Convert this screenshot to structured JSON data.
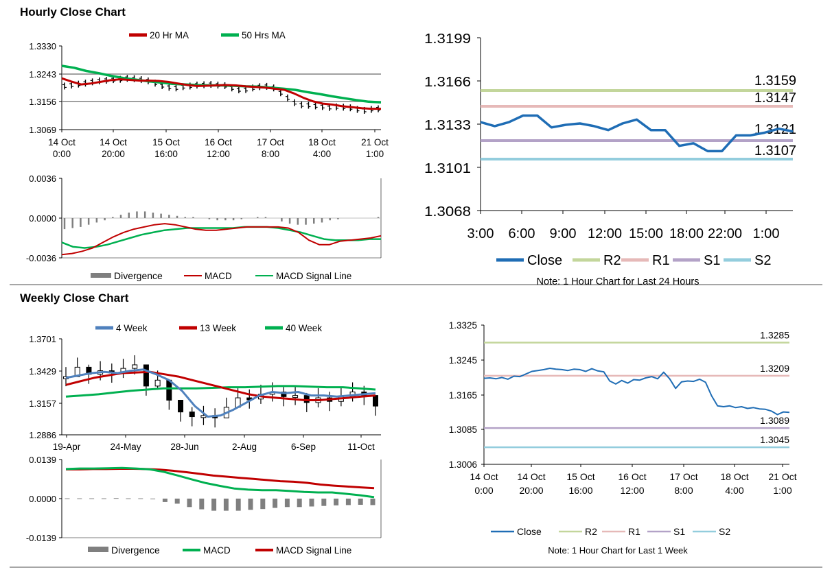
{
  "sections": {
    "hourly_title": "Hourly Close Chart",
    "weekly_title": "Weekly Close Chart"
  },
  "colors": {
    "red": "#c00000",
    "green": "#00b050",
    "blue": "#1f6db5",
    "steel": "#4f81bd",
    "r2": "#c3d69b",
    "r1": "#e6b9b8",
    "s1": "#b3a2c7",
    "s2": "#93cddd",
    "grid": "#808080",
    "divergence": "#7f7f7f"
  },
  "chart_data": [
    {
      "id": "hourly_price",
      "type": "line",
      "x_tick_labels": [
        [
          "14 Oct",
          "0:00"
        ],
        [
          "14 Oct",
          "20:00"
        ],
        [
          "15 Oct",
          "16:00"
        ],
        [
          "16 Oct",
          "12:00"
        ],
        [
          "17 Oct",
          "8:00"
        ],
        [
          "18 Oct",
          "4:00"
        ],
        [
          "21 Oct",
          "1:00"
        ]
      ],
      "y_ticks": [
        "1.3330",
        "1.3243",
        "1.3156",
        "1.3069"
      ],
      "ylim": [
        1.3069,
        1.333
      ],
      "legend": [
        {
          "name": "20 Hr MA",
          "color": "#c00000"
        },
        {
          "name": "50 Hrs MA",
          "color": "#00b050"
        }
      ],
      "series": [
        {
          "name": "Price (OHLC bars)",
          "values": [
            1.3205,
            1.3208,
            1.3211,
            1.3214,
            1.3218,
            1.3221,
            1.3223,
            1.3225,
            1.3226,
            1.3229,
            1.3228,
            1.3225,
            1.3221,
            1.3214,
            1.3206,
            1.3201,
            1.3199,
            1.3203,
            1.3205,
            1.3208,
            1.3209,
            1.321,
            1.3208,
            1.3206,
            1.3199,
            1.3193,
            1.3194,
            1.3199,
            1.3203,
            1.3204,
            1.3199,
            1.3184,
            1.3168,
            1.3153,
            1.3146,
            1.3145,
            1.3143,
            1.3141,
            1.3138,
            1.314,
            1.3139,
            1.3137,
            1.3132,
            1.3129,
            1.3132,
            1.3134
          ]
        },
        {
          "name": "20 Hr MA",
          "values": [
            1.3229,
            1.3219,
            1.321,
            1.3213,
            1.3218,
            1.3223,
            1.3226,
            1.3224,
            1.3222,
            1.3222,
            1.3221,
            1.3218,
            1.3213,
            1.3208,
            1.3205,
            1.3206,
            1.3207,
            1.3208,
            1.3207,
            1.3204,
            1.3202,
            1.32,
            1.3197,
            1.3193,
            1.3182,
            1.3168,
            1.3157,
            1.315,
            1.3147,
            1.3142,
            1.3139,
            1.3136,
            1.3134,
            1.3134
          ]
        },
        {
          "name": "50 Hrs MA",
          "values": [
            1.3268,
            1.3262,
            1.3252,
            1.3245,
            1.3237,
            1.323,
            1.3225,
            1.322,
            1.3216,
            1.3212,
            1.321,
            1.3208,
            1.3207,
            1.3207,
            1.3206,
            1.3204,
            1.3203,
            1.32,
            1.3197,
            1.3193,
            1.3186,
            1.318,
            1.3173,
            1.3167,
            1.3161,
            1.3156,
            1.3154
          ]
        }
      ]
    },
    {
      "id": "hourly_macd",
      "type": "line",
      "y_ticks": [
        "0.0036",
        "0.0000",
        "-0.0036"
      ],
      "ylim": [
        -0.0036,
        0.0036
      ],
      "legend": [
        {
          "name": "Divergence",
          "color": "#7f7f7f"
        },
        {
          "name": "MACD",
          "color": "#c00000"
        },
        {
          "name": "MACD Signal Line",
          "color": "#00b050"
        }
      ],
      "series": [
        {
          "name": "MACD",
          "values": [
            -0.0033,
            -0.0032,
            -0.003,
            -0.0027,
            -0.0022,
            -0.0017,
            -0.0013,
            -0.001,
            -0.0008,
            -0.0006,
            -0.0005,
            -0.0006,
            -0.0008,
            -0.001,
            -0.0011,
            -0.0011,
            -0.001,
            -0.0009,
            -0.0008,
            -0.0008,
            -0.0008,
            -0.0008,
            -0.0009,
            -0.0013,
            -0.002,
            -0.0024,
            -0.0024,
            -0.0021,
            -0.002,
            -0.0019,
            -0.0018,
            -0.0016
          ]
        },
        {
          "name": "MACD Signal Line",
          "values": [
            -0.0022,
            -0.0026,
            -0.0027,
            -0.0026,
            -0.0024,
            -0.0021,
            -0.0018,
            -0.0015,
            -0.0013,
            -0.0011,
            -0.001,
            -0.0009,
            -0.0009,
            -0.0009,
            -0.0009,
            -0.0009,
            -0.0008,
            -0.0008,
            -0.0008,
            -0.0009,
            -0.0011,
            -0.0013,
            -0.0016,
            -0.0019,
            -0.002,
            -0.002,
            -0.002,
            -0.0019,
            -0.0019
          ]
        },
        {
          "name": "Divergence",
          "values": [
            -0.001,
            -0.0009,
            -0.0008,
            -0.0006,
            -0.0004,
            -0.0002,
            0.0001,
            0.0003,
            0.0005,
            0.0006,
            0.0006,
            0.0005,
            0.0004,
            0.0003,
            0.0002,
            0.0001,
            0.0001,
            0.0,
            -0.0001,
            -0.0002,
            -0.0002,
            -0.0002,
            -0.0001,
            0.0,
            0.0001,
            0.0001,
            0.0,
            -0.0003,
            -0.0005,
            -0.0006,
            -0.0006,
            -0.0005,
            -0.0004,
            -0.0002,
            -0.0001,
            0.0,
            0.0,
            0.0,
            0.0,
            0.0001
          ]
        }
      ]
    },
    {
      "id": "hourly_close_24h",
      "type": "line",
      "x_tick_labels": [
        "3:00",
        "6:00",
        "9:00",
        "12:00",
        "15:00",
        "18:00",
        "22:00",
        "1:00"
      ],
      "y_ticks": [
        "1.3199",
        "1.3166",
        "1.3133",
        "1.3101",
        "1.3068"
      ],
      "ylim": [
        1.3068,
        1.3199
      ],
      "series": [
        {
          "name": "Close",
          "values": [
            1.3135,
            1.3132,
            1.3135,
            1.314,
            1.314,
            1.3131,
            1.3133,
            1.3134,
            1.3132,
            1.3129,
            1.3134,
            1.3137,
            1.3129,
            1.3129,
            1.3117,
            1.3119,
            1.3113,
            1.3113,
            1.3125,
            1.3125,
            1.3127,
            1.313,
            1.3128
          ]
        }
      ],
      "levels": [
        {
          "name": "R2",
          "value": 1.3159,
          "label": "1.3159"
        },
        {
          "name": "R1",
          "value": 1.3147,
          "label": "1.3147"
        },
        {
          "name": "S1",
          "value": 1.3121,
          "label": "1.3121"
        },
        {
          "name": "S2",
          "value": 1.3107,
          "label": "1.3107"
        }
      ],
      "legend": [
        "Close",
        "R2",
        "R1",
        "S1",
        "S2"
      ],
      "note": "Note: 1 Hour Chart for Last 24 Hours"
    },
    {
      "id": "weekly_price",
      "type": "line",
      "x_tick_labels": [
        "19-Apr",
        "24-May",
        "28-Jun",
        "2-Aug",
        "6-Sep",
        "11-Oct"
      ],
      "y_ticks": [
        "1.3701",
        "1.3429",
        "1.3157",
        "1.2886"
      ],
      "ylim": [
        1.2886,
        1.3701
      ],
      "legend": [
        {
          "name": "4 Week",
          "color": "#4f81bd"
        },
        {
          "name": "13 Week",
          "color": "#c00000"
        },
        {
          "name": "40 Week",
          "color": "#00b050"
        }
      ],
      "series": [
        {
          "name": "Weekly close",
          "values": [
            1.338,
            1.346,
            1.34,
            1.343,
            1.341,
            1.345,
            1.348,
            1.33,
            1.335,
            1.318,
            1.308,
            1.304,
            1.305,
            1.303,
            1.312,
            1.32,
            1.319,
            1.323,
            1.325,
            1.321,
            1.322,
            1.316,
            1.32,
            1.317,
            1.321,
            1.325,
            1.322,
            1.313
          ]
        },
        {
          "name": "4 Week",
          "values": [
            1.337,
            1.339,
            1.341,
            1.342,
            1.341,
            1.343,
            1.344,
            1.34,
            1.335,
            1.326,
            1.313,
            1.304,
            1.305,
            1.31,
            1.316,
            1.322,
            1.325,
            1.324,
            1.325,
            1.322,
            1.322,
            1.321,
            1.322,
            1.323,
            1.324
          ]
        },
        {
          "name": "13 Week",
          "values": [
            1.331,
            1.334,
            1.337,
            1.339,
            1.341,
            1.3415,
            1.342,
            1.34,
            1.338,
            1.335,
            1.332,
            1.329,
            1.326,
            1.323,
            1.321,
            1.32,
            1.319,
            1.318,
            1.318,
            1.319,
            1.32,
            1.321,
            1.322
          ]
        },
        {
          "name": "40 Week",
          "values": [
            1.321,
            1.322,
            1.323,
            1.3245,
            1.326,
            1.327,
            1.328,
            1.328,
            1.328,
            1.3285,
            1.329,
            1.329,
            1.3295,
            1.33,
            1.33,
            1.3295,
            1.329,
            1.329,
            1.328,
            1.327
          ]
        }
      ]
    },
    {
      "id": "weekly_macd",
      "type": "line",
      "y_ticks": [
        "0.0139",
        "0.0000",
        "-0.0139"
      ],
      "ylim": [
        -0.0139,
        0.0139
      ],
      "legend": [
        {
          "name": "Divergence",
          "color": "#7f7f7f"
        },
        {
          "name": "MACD",
          "color": "#00b050"
        },
        {
          "name": "MACD Signal Line",
          "color": "#c00000"
        }
      ],
      "series": [
        {
          "name": "MACD",
          "values": [
            0.0105,
            0.0107,
            0.0107,
            0.0108,
            0.0109,
            0.0107,
            0.0104,
            0.0095,
            0.0082,
            0.0068,
            0.0055,
            0.0045,
            0.0036,
            0.0032,
            0.003,
            0.003,
            0.0027,
            0.0024,
            0.0022,
            0.0022,
            0.0017,
            0.0012,
            0.0005
          ]
        },
        {
          "name": "MACD Signal Line",
          "values": [
            0.0104,
            0.0104,
            0.0105,
            0.0105,
            0.0106,
            0.0106,
            0.0105,
            0.0103,
            0.0099,
            0.0094,
            0.0088,
            0.0082,
            0.0078,
            0.0074,
            0.007,
            0.0066,
            0.0062,
            0.006,
            0.0056,
            0.005,
            0.0046,
            0.0043,
            0.004,
            0.0037
          ]
        },
        {
          "name": "Divergence",
          "values": [
            0.0001,
            0.0001,
            0.0001,
            0.0001,
            0.0002,
            0.0001,
            0.0001,
            -0.0002,
            -0.0012,
            -0.0018,
            -0.003,
            -0.0038,
            -0.0043,
            -0.0043,
            -0.0043,
            -0.004,
            -0.0037,
            -0.0033,
            -0.003,
            -0.003,
            -0.0028,
            -0.0026,
            -0.0024,
            -0.0023,
            -0.0022,
            -0.0023
          ]
        }
      ]
    },
    {
      "id": "weekly_close_1w",
      "type": "line",
      "x_tick_labels": [
        [
          "14 Oct",
          "0:00"
        ],
        [
          "14 Oct",
          "20:00"
        ],
        [
          "15 Oct",
          "16:00"
        ],
        [
          "16 Oct",
          "12:00"
        ],
        [
          "17 Oct",
          "8:00"
        ],
        [
          "18 Oct",
          "4:00"
        ],
        [
          "21 Oct",
          "1:00"
        ]
      ],
      "y_ticks": [
        "1.3325",
        "1.3245",
        "1.3165",
        "1.3085",
        "1.3006"
      ],
      "ylim": [
        1.3006,
        1.3325
      ],
      "series": [
        {
          "name": "Close",
          "values": [
            1.3203,
            1.3204,
            1.3202,
            1.3205,
            1.3201,
            1.3208,
            1.3207,
            1.3213,
            1.3219,
            1.3221,
            1.3223,
            1.3226,
            1.3224,
            1.3223,
            1.3221,
            1.3224,
            1.3223,
            1.3219,
            1.3225,
            1.322,
            1.3218,
            1.3197,
            1.319,
            1.3198,
            1.3192,
            1.32,
            1.3199,
            1.3204,
            1.3207,
            1.3202,
            1.3217,
            1.3202,
            1.318,
            1.3195,
            1.3197,
            1.3196,
            1.3201,
            1.3194,
            1.3163,
            1.314,
            1.3138,
            1.314,
            1.3136,
            1.3138,
            1.3134,
            1.3136,
            1.3133,
            1.3132,
            1.3128,
            1.312,
            1.3126,
            1.3125
          ]
        }
      ],
      "levels": [
        {
          "name": "R2",
          "value": 1.3285,
          "label": "1.3285"
        },
        {
          "name": "R1",
          "value": 1.3209,
          "label": "1.3209"
        },
        {
          "name": "S1",
          "value": 1.3089,
          "label": "1.3089"
        },
        {
          "name": "S2",
          "value": 1.3045,
          "label": "1.3045"
        }
      ],
      "legend": [
        "Close",
        "R2",
        "R1",
        "S1",
        "S2"
      ],
      "note": "Note: 1 Hour Chart for  Last 1 Week"
    }
  ]
}
